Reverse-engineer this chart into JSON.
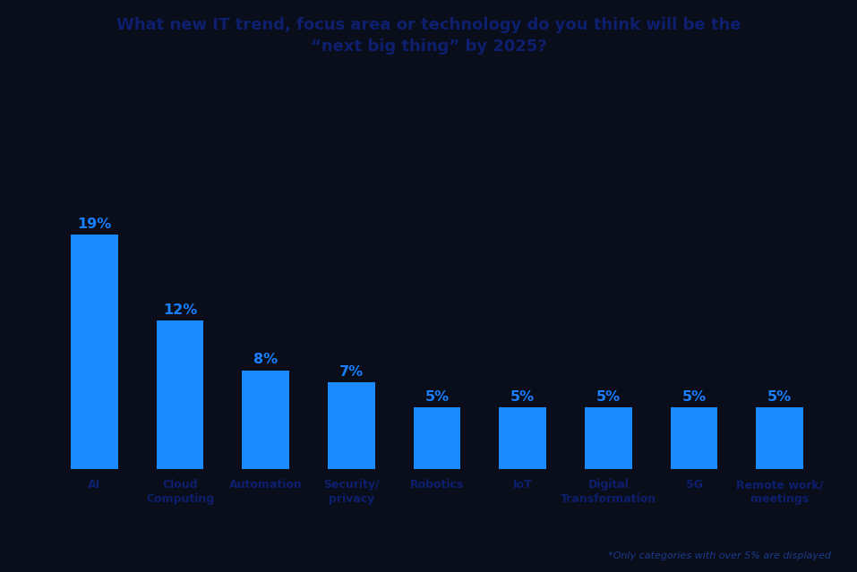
{
  "title_line1": "What new IT trend, focus area or technology do you think will be the",
  "title_line2": "“next big thing” by 2025?",
  "categories": [
    "AI",
    "Cloud\nComputing",
    "Automation",
    "Security/\nprivacy",
    "Robotics",
    "IoT",
    "Digital\nTransformation",
    "5G",
    "Remote work/\nmeetings"
  ],
  "values": [
    19,
    12,
    8,
    7,
    5,
    5,
    5,
    5,
    5
  ],
  "labels": [
    "19%",
    "12%",
    "8%",
    "7%",
    "5%",
    "5%",
    "5%",
    "5%",
    "5%"
  ],
  "bar_color": "#1a8cff",
  "label_color": "#1a7fff",
  "title_color": "#0d1f6e",
  "xlabel_color": "#0d1f6e",
  "background_color": "#090e1a",
  "footnote": "*Only categories with over 5% are displayed",
  "footnote_color": "#1a3a8c",
  "ylim": [
    0,
    25
  ],
  "bar_width": 0.55
}
